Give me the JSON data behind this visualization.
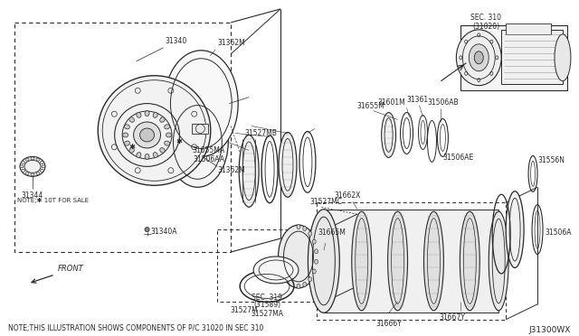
{
  "bg_color": "#ffffff",
  "line_color": "#2a2a2a",
  "note_bottom": "NOTE;THIS ILLUSTRATION SHOWS COMPONENTS OF P/C 31020 IN SEC 310",
  "note_left": "NOTE; * 10T FOR SALE",
  "watermark": "J31300WX",
  "front_label": "FRONT",
  "sec310_label": "SEC. 310\n(31020)",
  "sec319_label": "SEC. 319\n(31589)"
}
